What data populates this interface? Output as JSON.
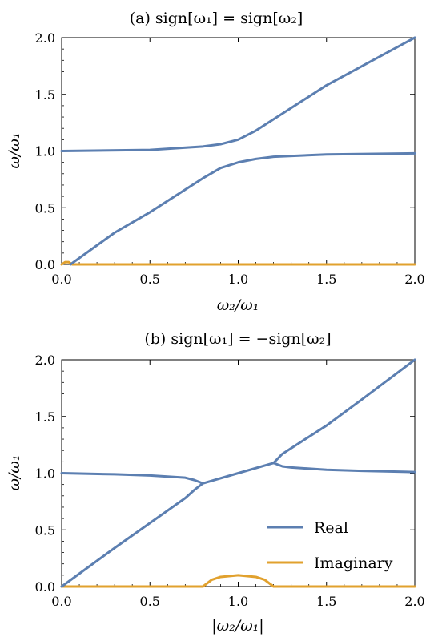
{
  "chart_data": [
    {
      "type": "line",
      "title": "(a) sign[ω₁] = sign[ω₂]",
      "xlabel": "ω₂/ω₁",
      "ylabel": "ω/ω₁",
      "xlim": [
        0,
        2
      ],
      "ylim": [
        0,
        2
      ],
      "xticks": [
        "0.0",
        "0.5",
        "1.0",
        "1.5",
        "2.0"
      ],
      "yticks": [
        "0.0",
        "0.5",
        "1.0",
        "1.5",
        "2.0"
      ],
      "series": [
        {
          "role": "real",
          "color": "#5c7fb1",
          "x": [
            0.0,
            0.5,
            0.8,
            0.9,
            1.0,
            1.1,
            1.2,
            1.5,
            2.0
          ],
          "y": [
            1.0,
            1.01,
            1.04,
            1.06,
            1.1,
            1.18,
            1.28,
            1.58,
            2.0
          ]
        },
        {
          "role": "real",
          "color": "#5c7fb1",
          "x": [
            0.05,
            0.3,
            0.5,
            0.7,
            0.8,
            0.9,
            1.0,
            1.1,
            1.2,
            1.5,
            2.0
          ],
          "y": [
            0.0,
            0.28,
            0.46,
            0.66,
            0.76,
            0.85,
            0.9,
            0.93,
            0.95,
            0.97,
            0.98
          ]
        },
        {
          "role": "imaginary",
          "color": "#e1a12e",
          "x": [
            0.0,
            0.02,
            0.04,
            0.06,
            2.0
          ],
          "y": [
            0.0,
            0.02,
            0.02,
            0.0,
            0.0
          ]
        }
      ]
    },
    {
      "type": "line",
      "title": "(b) sign[ω₁] = −sign[ω₂]",
      "xlabel": "|ω₂/ω₁|",
      "ylabel": "ω/ω₁",
      "xlim": [
        0,
        2
      ],
      "ylim": [
        0,
        2
      ],
      "xticks": [
        "0.0",
        "0.5",
        "1.0",
        "1.5",
        "2.0"
      ],
      "yticks": [
        "0.0",
        "0.5",
        "1.0",
        "1.5",
        "2.0"
      ],
      "legend": {
        "position": "bottom-right",
        "entries": [
          {
            "label": "Real",
            "color": "#5c7fb1"
          },
          {
            "label": "Imaginary",
            "color": "#e1a12e"
          }
        ]
      },
      "series": [
        {
          "role": "real",
          "color": "#5c7fb1",
          "x": [
            0.0,
            0.3,
            0.5,
            0.7,
            0.75,
            0.8
          ],
          "y": [
            1.0,
            0.99,
            0.98,
            0.96,
            0.94,
            0.91
          ]
        },
        {
          "role": "real",
          "color": "#5c7fb1",
          "x": [
            0.0,
            0.3,
            0.5,
            0.7,
            0.75,
            0.8
          ],
          "y": [
            0.0,
            0.34,
            0.56,
            0.78,
            0.85,
            0.91
          ]
        },
        {
          "role": "real",
          "color": "#5c7fb1",
          "x": [
            0.8,
            1.0,
            1.2
          ],
          "y": [
            0.91,
            1.0,
            1.09
          ]
        },
        {
          "role": "real",
          "color": "#5c7fb1",
          "x": [
            1.2,
            1.25,
            1.3,
            1.5,
            1.7,
            2.0
          ],
          "y": [
            1.09,
            1.17,
            1.22,
            1.42,
            1.65,
            2.0
          ]
        },
        {
          "role": "real",
          "color": "#5c7fb1",
          "x": [
            1.2,
            1.25,
            1.3,
            1.5,
            1.7,
            2.0
          ],
          "y": [
            1.09,
            1.06,
            1.05,
            1.03,
            1.02,
            1.01
          ]
        },
        {
          "role": "imaginary",
          "color": "#e1a12e",
          "x": [
            0.0,
            0.8,
            0.85,
            0.9,
            1.0,
            1.1,
            1.15,
            1.2,
            2.0
          ],
          "y": [
            0.0,
            0.0,
            0.06,
            0.085,
            0.1,
            0.085,
            0.06,
            0.0,
            0.0
          ]
        }
      ]
    }
  ]
}
